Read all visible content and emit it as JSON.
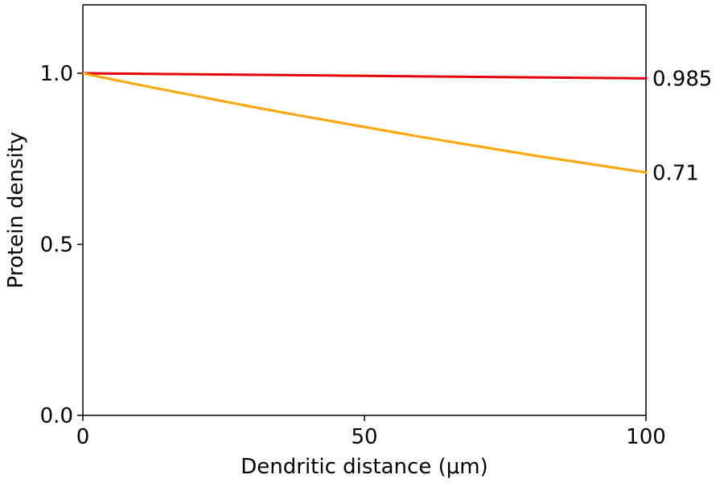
{
  "chart_data": {
    "type": "line",
    "xlabel": "Dendritic distance (μm)",
    "ylabel": "Protein density",
    "xlim": [
      0,
      100
    ],
    "ylim": [
      0,
      1.2
    ],
    "xticks": [
      0,
      50,
      100
    ],
    "xtick_labels": [
      "0",
      "50",
      "100"
    ],
    "yticks": [
      0,
      0.5,
      1
    ],
    "ytick_labels": [
      "0.0",
      "0.5",
      "1.0"
    ],
    "grid": false,
    "legend": "none",
    "series": [
      {
        "color": "#e8000b",
        "x": [
          0,
          100
        ],
        "y": [
          1.0,
          0.985
        ],
        "end_label": "0.985"
      },
      {
        "color": "#ffa500",
        "x": [
          0,
          10,
          20,
          30,
          40,
          50,
          60,
          70,
          80,
          90,
          100
        ],
        "y": [
          1.0,
          0.966,
          0.934,
          0.902,
          0.872,
          0.843,
          0.814,
          0.787,
          0.76,
          0.735,
          0.71
        ],
        "end_label": "0.71"
      }
    ]
  }
}
